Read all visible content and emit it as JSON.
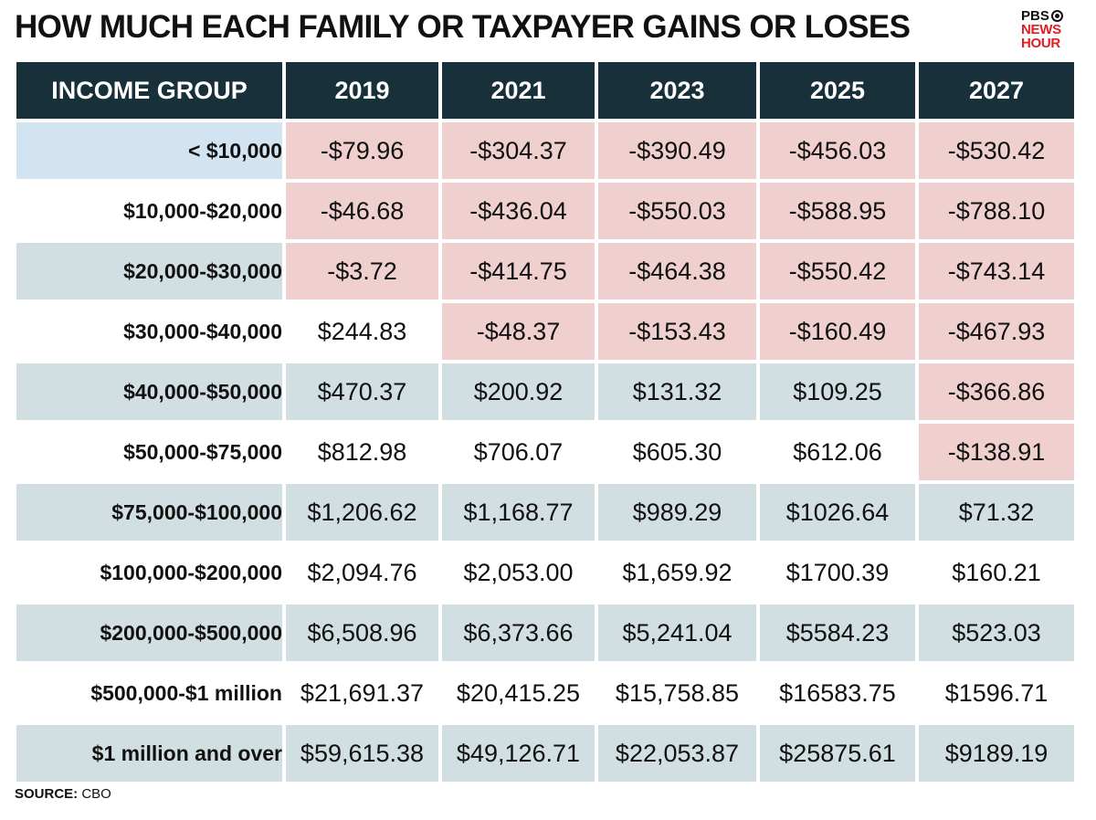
{
  "title": "HOW MUCH EACH FAMILY OR TAXPAYER GAINS OR LOSES",
  "logo": {
    "line1": "PBS",
    "line2": "NEWS",
    "line3": "HOUR"
  },
  "source_label": "SOURCE:",
  "source_value": "CBO",
  "colors": {
    "header_bg": "#17303a",
    "row_shade": "#d2dfe2",
    "negative_bg": "#f0cfcf",
    "highlight_bg": "#d2e4f1",
    "logo_red": "#e31b23"
  },
  "chart_data": {
    "type": "table",
    "title": "HOW MUCH EACH FAMILY OR TAXPAYER GAINS OR LOSES",
    "columns": [
      "INCOME GROUP",
      "2019",
      "2021",
      "2023",
      "2025",
      "2027"
    ],
    "rows": [
      {
        "group": "< $10,000",
        "values": [
          "-$79.96",
          "-$304.37",
          "-$390.49",
          "-$456.03",
          "-$530.42"
        ]
      },
      {
        "group": "$10,000-$20,000",
        "values": [
          "-$46.68",
          "-$436.04",
          "-$550.03",
          "-$588.95",
          "-$788.10"
        ]
      },
      {
        "group": "$20,000-$30,000",
        "values": [
          "-$3.72",
          "-$414.75",
          "-$464.38",
          "-$550.42",
          "-$743.14"
        ]
      },
      {
        "group": "$30,000-$40,000",
        "values": [
          "$244.83",
          "-$48.37",
          "-$153.43",
          "-$160.49",
          "-$467.93"
        ]
      },
      {
        "group": "$40,000-$50,000",
        "values": [
          "$470.37",
          "$200.92",
          "$131.32",
          "$109.25",
          "-$366.86"
        ]
      },
      {
        "group": "$50,000-$75,000",
        "values": [
          "$812.98",
          "$706.07",
          "$605.30",
          "$612.06",
          "-$138.91"
        ]
      },
      {
        "group": "$75,000-$100,000",
        "values": [
          "$1,206.62",
          "$1,168.77",
          "$989.29",
          "$1026.64",
          "$71.32"
        ]
      },
      {
        "group": "$100,000-$200,000",
        "values": [
          "$2,094.76",
          "$2,053.00",
          "$1,659.92",
          "$1700.39",
          "$160.21"
        ]
      },
      {
        "group": "$200,000-$500,000",
        "values": [
          "$6,508.96",
          "$6,373.66",
          "$5,241.04",
          "$5584.23",
          "$523.03"
        ]
      },
      {
        "group": "$500,000-$1 million",
        "values": [
          "$21,691.37",
          "$20,415.25",
          "$15,758.85",
          "$16583.75",
          "$1596.71"
        ]
      },
      {
        "group": "$1 million and over",
        "values": [
          "$59,615.38",
          "$49,126.71",
          "$22,053.87",
          "$25875.61",
          "$9189.19"
        ]
      }
    ],
    "source": "CBO"
  }
}
